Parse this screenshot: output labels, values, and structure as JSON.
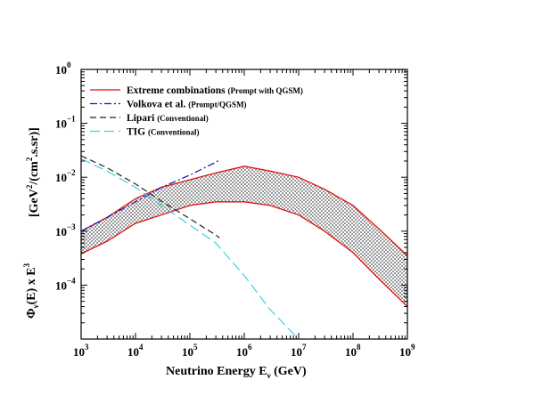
{
  "chart_data": {
    "type": "line",
    "title": "",
    "xlabel": {
      "main": "Neutrino Energy  E",
      "sub": "ν",
      "unit": "  (GeV)"
    },
    "ylabel": {
      "lhs": "Φ",
      "lhs_sub": "ν",
      "lhs_rest": "(E) x E",
      "lhs_sup": "3",
      "units_open": "[GeV",
      "units_sup1": "2",
      "units_mid": "/(cm",
      "units_sup2": "2",
      "units_close": ".s.sr)]"
    },
    "xscale": "log",
    "yscale": "log",
    "xlim": [
      1000,
      1000000000
    ],
    "ylim": [
      1e-05,
      1
    ],
    "x_ticks": [
      {
        "base": "10",
        "exp": "3"
      },
      {
        "base": "10",
        "exp": "4"
      },
      {
        "base": "10",
        "exp": "5"
      },
      {
        "base": "10",
        "exp": "6"
      },
      {
        "base": "10",
        "exp": "7"
      },
      {
        "base": "10",
        "exp": "8"
      },
      {
        "base": "10",
        "exp": "9"
      }
    ],
    "y_ticks": [
      {
        "base": "10",
        "exp": "-4",
        "exp_text": "−4",
        "value": 0.0001
      },
      {
        "base": "10",
        "exp": "-3",
        "exp_text": "−3",
        "value": 0.001
      },
      {
        "base": "10",
        "exp": "-2",
        "exp_text": "−2",
        "value": 0.01
      },
      {
        "base": "10",
        "exp": "-1",
        "exp_text": "−1",
        "value": 0.1
      },
      {
        "base": "10",
        "exp": "0",
        "exp_text": "0",
        "value": 1
      }
    ],
    "legend_position": "top-left",
    "band": {
      "name": "Extreme combinations",
      "note": "(Prompt with QGSM)",
      "color": "#e01010",
      "fill": "hatched-grey",
      "upper": {
        "x": [
          1000,
          3000,
          10000,
          30000,
          100000,
          300000,
          1000000,
          3000000,
          10000000,
          30000000,
          100000000,
          300000000,
          1000000000
        ],
        "y": [
          0.001,
          0.0018,
          0.004,
          0.0065,
          0.009,
          0.012,
          0.016,
          0.013,
          0.01,
          0.006,
          0.003,
          0.0011,
          0.00035
        ]
      },
      "lower": {
        "x": [
          1000,
          3000,
          10000,
          30000,
          100000,
          300000,
          1000000,
          3000000,
          10000000,
          30000000,
          100000000,
          300000000,
          1000000000
        ],
        "y": [
          0.00038,
          0.00065,
          0.0014,
          0.002,
          0.003,
          0.0035,
          0.0035,
          0.003,
          0.002,
          0.001,
          0.0004,
          0.00013,
          4e-05
        ]
      }
    },
    "series": [
      {
        "name": "Volkova et al.",
        "note": "(Prompt/QGSM)",
        "color": "#1010c0",
        "dash": "dashdot",
        "x": [
          1000,
          3000,
          10000,
          30000,
          100000,
          300000,
          350000
        ],
        "y": [
          0.001,
          0.0018,
          0.0035,
          0.0065,
          0.011,
          0.019,
          0.021
        ]
      },
      {
        "name": "Lipari",
        "note": "(Conventional)",
        "color": "#222222",
        "dash": "dashed",
        "x": [
          1000,
          3000,
          10000,
          30000,
          100000,
          300000,
          350000
        ],
        "y": [
          0.025,
          0.015,
          0.0075,
          0.0036,
          0.0017,
          0.00085,
          0.00075
        ]
      },
      {
        "name": "TIG",
        "note": "(Conventional)",
        "color": "#40d0e0",
        "dash": "longdash",
        "x": [
          1000,
          3000,
          10000,
          30000,
          100000,
          300000,
          1000000,
          3000000,
          10000000
        ],
        "y": [
          0.022,
          0.013,
          0.0065,
          0.003,
          0.0013,
          0.0006,
          0.00015,
          3.5e-05,
          1e-05
        ]
      }
    ]
  }
}
